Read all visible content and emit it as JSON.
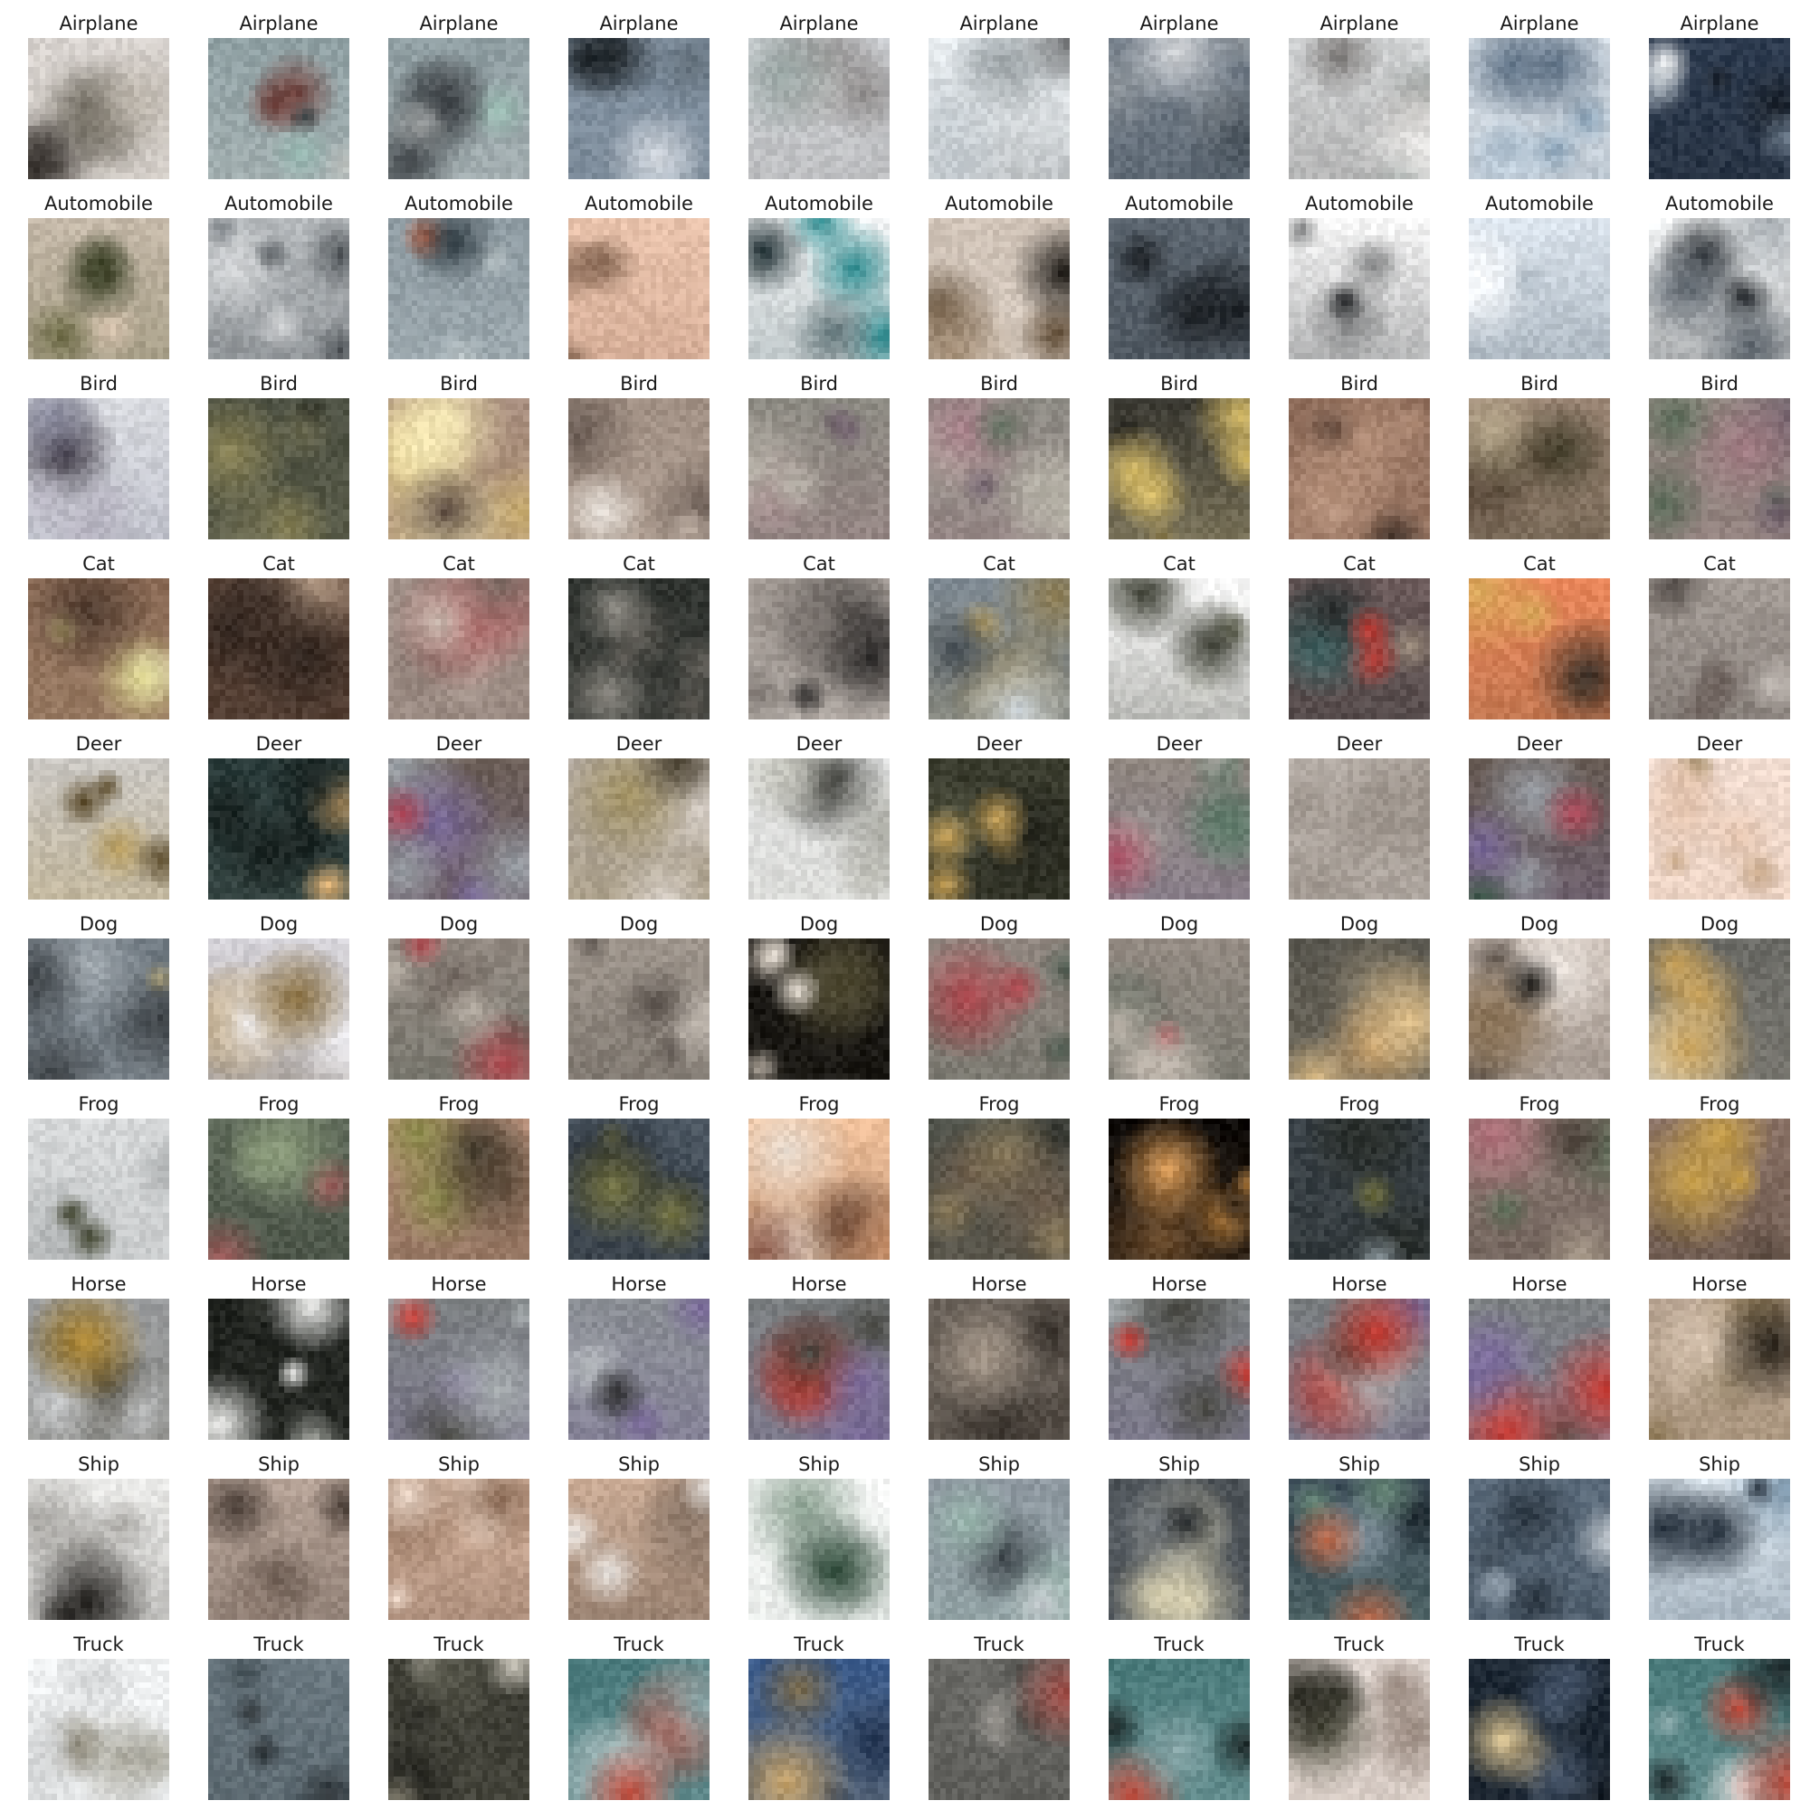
{
  "grid": {
    "rows": [
      {
        "label": "Airplane",
        "tiles": [
          {
            "palette": [
              "#d8d3cf",
              "#8f8a84",
              "#3a3531",
              "#6f6a5f",
              "#bfb8ae"
            ]
          },
          {
            "palette": [
              "#8fa0a3",
              "#3f4749",
              "#6e3f3a",
              "#96b8b1",
              "#c2c6c3"
            ]
          },
          {
            "palette": [
              "#8e9da1",
              "#41464a",
              "#743f3a",
              "#9dc0b6",
              "#c8cbca"
            ]
          },
          {
            "palette": [
              "#8797a7",
              "#1d2327",
              "#a0a7b0",
              "#d8dde4",
              "#5f6c77"
            ]
          },
          {
            "palette": [
              "#d4d7db",
              "#bcb9b8",
              "#9aa7a5",
              "#e6e4e3",
              "#8e8b8a"
            ]
          },
          {
            "palette": [
              "#eef3f6",
              "#2f3032",
              "#9aa1a4",
              "#c7ced3",
              "#6b6d6f"
            ]
          },
          {
            "palette": [
              "#6f7a86",
              "#2b2d2f",
              "#d8dadd",
              "#8d949a",
              "#47515a"
            ]
          },
          {
            "palette": [
              "#d2d4d5",
              "#aeaaa7",
              "#8d9694",
              "#ebeae8",
              "#7a7775"
            ]
          },
          {
            "palette": [
              "#ecf2f7",
              "#273442",
              "#8aa3b8",
              "#c8d5e1",
              "#5e7185"
            ]
          },
          {
            "palette": [
              "#2d3b4f",
              "#f2f4f5",
              "#6d7c8c",
              "#b9c2cb",
              "#1c232c"
            ]
          }
        ]
      },
      {
        "label": "Automobile",
        "tiles": [
          {
            "palette": [
              "#c5b9a9",
              "#3e4329",
              "#1f2114",
              "#d9c5b0",
              "#6c6a45"
            ]
          },
          {
            "palette": [
              "#b5b9bc",
              "#202326",
              "#7c8186",
              "#d6d8da",
              "#4d5256"
            ]
          },
          {
            "palette": [
              "#8d9aa1",
              "#2a8c8c",
              "#313d44",
              "#c35c3a",
              "#b7c1c4"
            ]
          },
          {
            "palette": [
              "#e9c3ac",
              "#8b6b57",
              "#2c241f",
              "#f0dfd2",
              "#b08570"
            ]
          },
          {
            "palette": [
              "#f1f3f4",
              "#2c8b8f",
              "#1b2b2f",
              "#a7b4b8",
              "#5d7175"
            ]
          },
          {
            "palette": [
              "#cfc2b6",
              "#5a4630",
              "#1d1a16",
              "#a38d75",
              "#e6ddd3"
            ]
          },
          {
            "palette": [
              "#5c6670",
              "#1b1f23",
              "#8e969e",
              "#c2c7cc",
              "#3b4249"
            ]
          },
          {
            "palette": [
              "#f6f6f6",
              "#1d1f21",
              "#7e7f80",
              "#c8c8c8",
              "#3a3c3e"
            ]
          },
          {
            "palette": [
              "#dce5ee",
              "#222a30",
              "#97a5b1",
              "#f3f6f9",
              "#56636e"
            ]
          },
          {
            "palette": [
              "#f5f7f8",
              "#2c3238",
              "#5e666e",
              "#a7adb2",
              "#1a1e22"
            ]
          }
        ]
      },
      {
        "label": "Bird",
        "tiles": [
          {
            "palette": [
              "#d9dbe0",
              "#6a5f78",
              "#2d2733",
              "#b7b4c1",
              "#8c8da0"
            ]
          },
          {
            "palette": [
              "#4d5143",
              "#8c8557",
              "#25271f",
              "#a79f6b",
              "#6b6a50"
            ]
          },
          {
            "palette": [
              "#a58b7c",
              "#e8d389",
              "#5b4a40",
              "#f4e7b4",
              "#c7ab6e"
            ]
          },
          {
            "palette": [
              "#a08f83",
              "#2a2420",
              "#e9e3dc",
              "#6b5d55",
              "#c2b3a7"
            ]
          },
          {
            "palette": [
              "#8c8a82",
              "#6f5f6b",
              "#b4b0a6",
              "#5f6f5d",
              "#a47c85"
            ]
          },
          {
            "palette": [
              "#8d8b84",
              "#71626d",
              "#b7b3a8",
              "#617060",
              "#a67f88"
            ]
          },
          {
            "palette": [
              "#3b3a33",
              "#d8bd68",
              "#1e1d19",
              "#8a7a4b",
              "#efdca0"
            ]
          },
          {
            "palette": [
              "#8c6a58",
              "#3a2c24",
              "#d9b9a4",
              "#5e4538",
              "#b48f79"
            ]
          },
          {
            "palette": [
              "#9a8574",
              "#7c7a3a",
              "#5b4a3b",
              "#b5a68a",
              "#3f3a27"
            ]
          },
          {
            "palette": [
              "#8c867d",
              "#6f5f6b",
              "#b3aea3",
              "#5c6c5a",
              "#a17a82"
            ]
          }
        ]
      },
      {
        "label": "Cat",
        "tiles": [
          {
            "palette": [
              "#8a6a55",
              "#f1efe0",
              "#d8d08a",
              "#4f3b2f",
              "#b49a7d"
            ]
          },
          {
            "palette": [
              "#5c4538",
              "#8e7462",
              "#2f241e",
              "#b79e88",
              "#3f3028"
            ]
          },
          {
            "palette": [
              "#a09088",
              "#c8b8ae",
              "#7b6a63",
              "#b06a6a",
              "#8f7f76"
            ]
          },
          {
            "palette": [
              "#2f332f",
              "#8d8a83",
              "#d8c49d",
              "#1a1c1a",
              "#5e5b55"
            ]
          },
          {
            "palette": [
              "#a49c96",
              "#2a2827",
              "#d6bd7a",
              "#7f7873",
              "#c5beb8"
            ]
          },
          {
            "palette": [
              "#7f8a93",
              "#b49a5a",
              "#444c52",
              "#c9d1d6",
              "#8f7f55"
            ]
          },
          {
            "palette": [
              "#fbfbfb",
              "#1d1f1a",
              "#6a6d55",
              "#c8c9c2",
              "#3c3e33"
            ]
          },
          {
            "palette": [
              "#6b5a5a",
              "#c43a33",
              "#3c6e6e",
              "#9a8a7a",
              "#2d3030"
            ]
          },
          {
            "palette": [
              "#e9865a",
              "#3a2e26",
              "#d8a85a",
              "#f3c7a3",
              "#7b5b3f"
            ]
          },
          {
            "palette": [
              "#a39b95",
              "#6b5f5a",
              "#c9c2bc",
              "#857b75",
              "#4f4844"
            ]
          }
        ]
      },
      {
        "label": "Deer",
        "tiles": [
          {
            "palette": [
              "#c9c6c1",
              "#8a6a32",
              "#e6e2dd",
              "#5a4a2a",
              "#b59a5a"
            ]
          },
          {
            "palette": [
              "#2a3b3a",
              "#c08a4a",
              "#18211f",
              "#e8b878",
              "#4e5b55"
            ]
          },
          {
            "palette": [
              "#6b5e57",
              "#b2485a",
              "#3a5a4a",
              "#9aa0a6",
              "#7a6a9a"
            ]
          },
          {
            "palette": [
              "#b3aaa2",
              "#7a6a3a",
              "#d6cec6",
              "#4a4232",
              "#9f8f5f"
            ]
          },
          {
            "palette": [
              "#e5e6e6",
              "#5b5a4c",
              "#a7a79f",
              "#2e2f2a",
              "#c8c8c0"
            ]
          },
          {
            "palette": [
              "#3a3c2e",
              "#c9a45a",
              "#5a5c48",
              "#e6cd8d",
              "#23241c"
            ]
          },
          {
            "palette": [
              "#8e857e",
              "#b0556a",
              "#5f7a6a",
              "#a8a6a0",
              "#7b6e9c"
            ]
          },
          {
            "palette": [
              "#b4aca5",
              "#c79a4a",
              "#d8d1ca",
              "#8a6a3a",
              "#9e958d"
            ]
          },
          {
            "palette": [
              "#675b54",
              "#ad4657",
              "#375646",
              "#979ca3",
              "#786899"
            ]
          },
          {
            "palette": [
              "#f1dcd0",
              "#6b5a2a",
              "#c9a98a",
              "#3f351a",
              "#e3c3ad"
            ]
          }
        ]
      },
      {
        "label": "Dog",
        "tiles": [
          {
            "palette": [
              "#6e7880",
              "#e9d594",
              "#3d4246",
              "#c8b06b",
              "#a3abb1"
            ]
          },
          {
            "palette": [
              "#d4d2d8",
              "#b89456",
              "#8a7040",
              "#ecebef",
              "#5a4a30"
            ]
          },
          {
            "palette": [
              "#918880",
              "#b04a50",
              "#6a5f58",
              "#b8b0a6",
              "#4d5a4f"
            ]
          },
          {
            "palette": [
              "#9e958c",
              "#5e5650",
              "#c7bfb6",
              "#7c7068",
              "#44403a"
            ]
          },
          {
            "palette": [
              "#14120f",
              "#e8e0d6",
              "#4f4a33",
              "#b5aca1",
              "#2c2a22"
            ]
          },
          {
            "palette": [
              "#918780",
              "#b24b52",
              "#6b6059",
              "#bbb2a8",
              "#4e5b50"
            ]
          },
          {
            "palette": [
              "#938a82",
              "#b34c53",
              "#6d625b",
              "#bdb4aa",
              "#4f5c51"
            ]
          },
          {
            "palette": [
              "#5a5850",
              "#c8a06a",
              "#3a3934",
              "#e0c08a",
              "#8a7f6a"
            ]
          },
          {
            "palette": [
              "#cbbfb6",
              "#1f1d1a",
              "#8a7358",
              "#ebe4de",
              "#5a5048"
            ]
          },
          {
            "palette": [
              "#6b6b66",
              "#c9a25a",
              "#3d3d39",
              "#f2f0ea",
              "#8f8a80"
            ]
          }
        ]
      },
      {
        "label": "Frog",
        "tiles": [
          {
            "palette": [
              "#d6d8d9",
              "#3b3f2a",
              "#8a8a5a",
              "#1e201a",
              "#aeb1b2"
            ]
          },
          {
            "palette": [
              "#5f6a5a",
              "#a05a5a",
              "#3a4a3a",
              "#8a9a7a",
              "#2a302a"
            ]
          },
          {
            "palette": [
              "#b58e78",
              "#2f2e22",
              "#8a8a4a",
              "#d9b6a0",
              "#5a4a3a"
            ]
          },
          {
            "palette": [
              "#4a5560",
              "#2a2f2a",
              "#7a7a4a",
              "#8fa0aa",
              "#1c2024"
            ]
          },
          {
            "palette": [
              "#f0c09a",
              "#8a5a4a",
              "#e8dcd0",
              "#c8906a",
              "#5a3a2a"
            ]
          },
          {
            "palette": [
              "#4f524a",
              "#8a7a5a",
              "#2f312c",
              "#a08a6a",
              "#6a5a4a"
            ]
          },
          {
            "palette": [
              "#0f0c0a",
              "#b07a3a",
              "#3a2a1a",
              "#e0a05a",
              "#6a4a2a"
            ]
          },
          {
            "palette": [
              "#3a4248",
              "#1a1e1c",
              "#6a6a3a",
              "#8a969c",
              "#2a2f2c"
            ]
          },
          {
            "palette": [
              "#8a7a72",
              "#b0707a",
              "#5f6f5a",
              "#a89a8a",
              "#4a3f38"
            ]
          },
          {
            "palette": [
              "#8a7266",
              "#c8a04a",
              "#5a4a40",
              "#a8907e",
              "#3f342c"
            ]
          }
        ]
      },
      {
        "label": "Horse",
        "tiles": [
          {
            "palette": [
              "#9a9c9e",
              "#3a3628",
              "#b8903a",
              "#c8cacc",
              "#5e5a4a"
            ]
          },
          {
            "palette": [
              "#1f221e",
              "#f2f2f0",
              "#5a5e55",
              "#a8aaa4",
              "#3a3d37"
            ]
          },
          {
            "palette": [
              "#7a7e80",
              "#c73a33",
              "#4a4a44",
              "#a8aeb0",
              "#7a6a9a"
            ]
          },
          {
            "palette": [
              "#8a8e94",
              "#2a2a2c",
              "#5e5a58",
              "#b8bcc0",
              "#7a6a9a"
            ]
          },
          {
            "palette": [
              "#797d7f",
              "#c63931",
              "#494943",
              "#a7adaf",
              "#796999"
            ]
          },
          {
            "palette": [
              "#6a625a",
              "#3a342e",
              "#8a7f74",
              "#a89a8c",
              "#4f4841"
            ]
          },
          {
            "palette": [
              "#7b7f81",
              "#c83b34",
              "#4b4b45",
              "#a9afb1",
              "#7b6b9b"
            ]
          },
          {
            "palette": [
              "#787c7e",
              "#c5382f",
              "#484842",
              "#a6acae",
              "#786898"
            ]
          },
          {
            "palette": [
              "#7c8082",
              "#c93c35",
              "#4c4c46",
              "#aab0b2",
              "#7c6c9c"
            ]
          },
          {
            "palette": [
              "#b8a492",
              "#6a5a3a",
              "#2a241c",
              "#d9c6b2",
              "#8f7a58"
            ]
          }
        ]
      },
      {
        "label": "Ship",
        "tiles": [
          {
            "palette": [
              "#ebebe9",
              "#1f1d1a",
              "#a9a7a3",
              "#d2d1ce",
              "#6a6864"
            ]
          },
          {
            "palette": [
              "#b6a397",
              "#6a5a50",
              "#d6c8bd",
              "#8f7d72",
              "#4a3e37"
            ]
          },
          {
            "palette": [
              "#d8b6a0",
              "#2a1e18",
              "#8a6a55",
              "#f0dccd",
              "#5a4235"
            ]
          },
          {
            "palette": [
              "#c9aa94",
              "#e8e4e0",
              "#6a5a4e",
              "#9a8474",
              "#3f362f"
            ]
          },
          {
            "palette": [
              "#f6f7f6",
              "#2f4a3a",
              "#8aa090",
              "#5a7060",
              "#cfd6d1"
            ]
          },
          {
            "palette": [
              "#8e98a0",
              "#6e3f3a",
              "#3f474c",
              "#c0c6ca",
              "#9ab7ae"
            ]
          },
          {
            "palette": [
              "#4a5055",
              "#d8d0b0",
              "#25292c",
              "#8a8c80",
              "#6a7076"
            ]
          },
          {
            "palette": [
              "#3a4a56",
              "#c06a4a",
              "#1f2a30",
              "#8a9aa5",
              "#6a8a7a"
            ]
          },
          {
            "palette": [
              "#5a6a7a",
              "#2a3540",
              "#8a98a5",
              "#c8ced4",
              "#3f4c58"
            ]
          },
          {
            "palette": [
              "#dce6ee",
              "#1f2a36",
              "#7c96ab",
              "#f4f7f9",
              "#45596b"
            ]
          }
        ]
      },
      {
        "label": "Truck",
        "tiles": [
          {
            "palette": [
              "#f1f3f4",
              "#4a3f22",
              "#a8a69a",
              "#2a2414",
              "#d3d5d6"
            ]
          },
          {
            "palette": [
              "#6a7880",
              "#2a3034",
              "#b8c0c5",
              "#c8504a",
              "#465258"
            ]
          },
          {
            "palette": [
              "#3a3a32",
              "#d8d4c8",
              "#1e1e1a",
              "#8a8676",
              "#5a5a4e"
            ]
          },
          {
            "palette": [
              "#4a7a7c",
              "#e8e6e4",
              "#1f2a2c",
              "#c04a3a",
              "#8aa8aa"
            ]
          },
          {
            "palette": [
              "#3a5a8a",
              "#c8a46a",
              "#22334f",
              "#e6d0a0",
              "#7a6a4a"
            ]
          },
          {
            "palette": [
              "#6a6a66",
              "#2a2a28",
              "#b0aca6",
              "#a04a44",
              "#4a4a46"
            ]
          },
          {
            "palette": [
              "#4a7a7a",
              "#e8e8e6",
              "#1f2a2a",
              "#bf4a3b",
              "#89a7a9"
            ]
          },
          {
            "palette": [
              "#e0d6d0",
              "#4a4a3a",
              "#9a8a80",
              "#2a2a22",
              "#c8bab0"
            ]
          },
          {
            "palette": [
              "#1f2a36",
              "#e0c894",
              "#46556a",
              "#b8a070",
              "#0f151c"
            ]
          },
          {
            "palette": [
              "#4b7b7b",
              "#e9e7e5",
              "#202b2d",
              "#c14b3c",
              "#8ba9ab"
            ]
          }
        ]
      }
    ]
  }
}
